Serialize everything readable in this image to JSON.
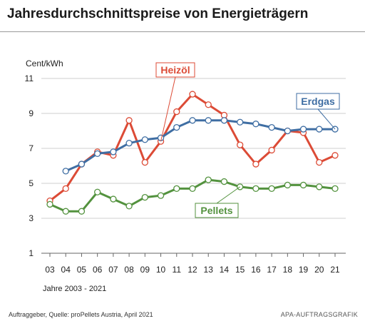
{
  "title": "Jahresdurchschnittspreise von Energieträgern",
  "footer": {
    "source": "Auftraggeber, Quelle: proPellets Austria, April 2021",
    "credit": "APA-AUFTRAGSGRAFIK"
  },
  "colors": {
    "heizoel": "#dc4b36",
    "erdgas": "#3f6ea3",
    "pellets": "#53923e",
    "grid": "#cfcfcf",
    "text": "#222222"
  },
  "chart_data": {
    "type": "line",
    "title": "Jahresdurchschnittspreise von Energieträgern",
    "ylabel": "Cent/kWh",
    "xlabel": "Jahre 2003 - 2021",
    "ylim": [
      1,
      11
    ],
    "yticks": [
      "1",
      "3",
      "5",
      "7",
      "9",
      "11"
    ],
    "grid": true,
    "categories": [
      "03",
      "04",
      "05",
      "06",
      "07",
      "08",
      "09",
      "10",
      "11",
      "12",
      "13",
      "14",
      "15",
      "16",
      "17",
      "18",
      "19",
      "20",
      "21"
    ],
    "series": [
      {
        "name": "Heizöl",
        "color": "#dc4b36",
        "values": [
          4.0,
          4.7,
          6.1,
          6.8,
          6.6,
          8.6,
          6.2,
          7.4,
          9.1,
          10.1,
          9.5,
          8.9,
          7.2,
          6.1,
          6.9,
          8.0,
          7.9,
          6.2,
          6.6
        ]
      },
      {
        "name": "Erdgas",
        "color": "#3f6ea3",
        "values": [
          null,
          5.7,
          6.1,
          6.7,
          6.8,
          7.3,
          7.5,
          7.6,
          8.2,
          8.6,
          8.6,
          8.6,
          8.5,
          8.4,
          8.2,
          8.0,
          8.1,
          8.1,
          8.1
        ]
      },
      {
        "name": "Pellets",
        "color": "#53923e",
        "values": [
          3.8,
          3.4,
          3.4,
          4.5,
          4.1,
          3.7,
          4.2,
          4.3,
          4.7,
          4.7,
          5.2,
          5.1,
          4.8,
          4.7,
          4.7,
          4.9,
          4.9,
          4.8,
          4.7
        ]
      }
    ]
  }
}
